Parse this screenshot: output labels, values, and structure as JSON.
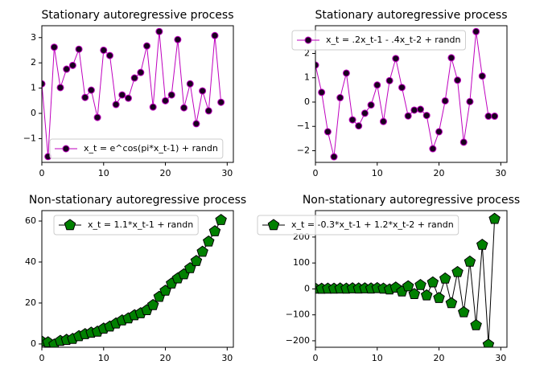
{
  "chart_data": [
    {
      "type": "line",
      "title": "Stationary autoregressive process",
      "x": [
        0,
        1,
        2,
        3,
        4,
        5,
        6,
        7,
        8,
        9,
        10,
        11,
        12,
        13,
        14,
        15,
        16,
        17,
        18,
        19,
        20,
        21,
        22,
        23,
        24,
        25,
        26,
        27,
        28,
        29
      ],
      "series": [
        {
          "name": "x_t = e^cos(pi*x_t-1) + randn",
          "color": "#bf00bf",
          "marker": "circle",
          "marker_face": "#1a0020",
          "values": [
            1.17,
            -1.71,
            2.62,
            1.02,
            1.75,
            1.9,
            2.54,
            0.63,
            0.92,
            -0.16,
            2.5,
            2.29,
            0.35,
            0.73,
            0.6,
            1.4,
            1.62,
            2.67,
            0.25,
            3.24,
            0.5,
            0.73,
            2.92,
            0.22,
            1.17,
            -0.41,
            0.89,
            0.1,
            3.08,
            0.44
          ]
        }
      ],
      "xlim": [
        0,
        31
      ],
      "ylim": [
        -1.94,
        3.47
      ],
      "xticks": [
        0,
        10,
        20,
        30
      ],
      "yticks": [
        {
          "value": -1,
          "label": "−1"
        },
        0,
        1,
        2,
        3
      ],
      "legend_loc": "lower right"
    },
    {
      "type": "line",
      "title": "Stationary autoregressive process",
      "x": [
        0,
        1,
        2,
        3,
        4,
        5,
        6,
        7,
        8,
        9,
        10,
        11,
        12,
        13,
        14,
        15,
        16,
        17,
        18,
        19,
        20,
        21,
        22,
        23,
        24,
        25,
        26,
        27,
        28,
        29
      ],
      "series": [
        {
          "name": "x_t = .2x_t-1 - .4x_t-2 + randn",
          "color": "#bf00bf",
          "marker": "circle",
          "marker_face": "#1a0020",
          "values": [
            1.52,
            0.4,
            -1.22,
            -2.25,
            0.18,
            1.19,
            -0.73,
            -0.98,
            -0.46,
            -0.12,
            0.7,
            -0.8,
            0.88,
            1.79,
            0.6,
            -0.57,
            -0.33,
            -0.3,
            -0.55,
            -1.92,
            -1.22,
            0.05,
            1.82,
            0.9,
            -1.65,
            0.02,
            2.9,
            1.07,
            -0.58,
            -0.58
          ]
        }
      ],
      "xlim": [
        0,
        31
      ],
      "ylim": [
        -2.48,
        3.14
      ],
      "xticks": [
        0,
        10,
        20,
        30
      ],
      "yticks": [
        {
          "value": -2,
          "label": "−2"
        },
        {
          "value": -1,
          "label": "−1"
        },
        0,
        1,
        2
      ],
      "legend_loc": "upper right"
    },
    {
      "type": "line",
      "title": "Non-stationary autoregressive process",
      "x": [
        0,
        1,
        2,
        3,
        4,
        5,
        6,
        7,
        8,
        9,
        10,
        11,
        12,
        13,
        14,
        15,
        16,
        17,
        18,
        19,
        20,
        21,
        22,
        23,
        24,
        25,
        26,
        27,
        28,
        29
      ],
      "series": [
        {
          "name": "x_t = 1.1*x_t-1 + randn",
          "color": "#000000",
          "marker": "pentagon",
          "marker_face": "#008000",
          "values": [
            1.2,
            0.8,
            -0.3,
            1.5,
            2,
            2.5,
            3.8,
            4.8,
            5.5,
            6,
            7.5,
            8.5,
            10,
            11.5,
            12.5,
            14,
            15,
            16.5,
            19,
            23,
            26,
            29.5,
            32,
            34,
            37,
            40.5,
            45,
            50,
            55,
            60.5
          ]
        }
      ],
      "xlim": [
        0,
        31
      ],
      "ylim": [
        -1.6,
        65.1
      ],
      "xticks": [
        0,
        10,
        20,
        30
      ],
      "yticks": [
        0,
        20,
        40,
        60
      ],
      "legend_loc": "upper right"
    },
    {
      "type": "line",
      "title": "Non-stationary autoregressive process",
      "x": [
        0,
        1,
        2,
        3,
        4,
        5,
        6,
        7,
        8,
        9,
        10,
        11,
        12,
        13,
        14,
        15,
        16,
        17,
        18,
        19,
        20,
        21,
        22,
        23,
        24,
        25,
        26,
        27,
        28,
        29
      ],
      "series": [
        {
          "name": "x_t = -0.3*x_t-1 + 1.2*x_t-2 + randn",
          "color": "#000000",
          "marker": "pentagon",
          "marker_face": "#008000",
          "values": [
            1,
            0.5,
            1,
            0.8,
            1.5,
            1,
            2,
            1.5,
            2,
            1.5,
            3,
            1,
            -2,
            5,
            -10,
            10,
            -20,
            15,
            -25,
            25,
            -35,
            40,
            -55,
            65,
            -90,
            105,
            -140,
            170,
            -215,
            270
          ]
        }
      ],
      "xlim": [
        0,
        31
      ],
      "ylim": [
        -225,
        302
      ],
      "xticks": [
        0,
        10,
        20,
        30
      ],
      "yticks": [
        {
          "value": -200,
          "label": "−200"
        },
        {
          "value": -100,
          "label": "−100"
        },
        0,
        100,
        200
      ],
      "legend_loc": "upper right"
    }
  ]
}
